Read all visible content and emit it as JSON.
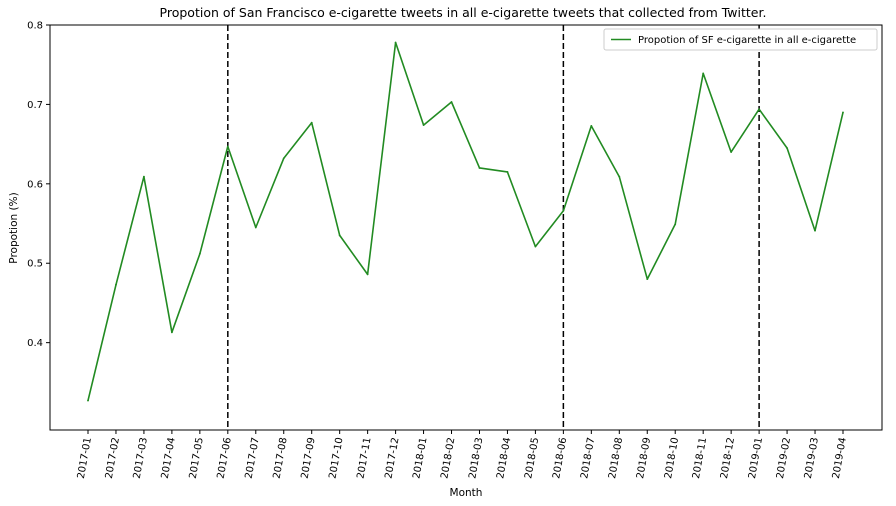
{
  "chart_data": {
    "type": "line",
    "title": "Propotion of San Francisco e-cigarette tweets in all e-cigarette tweets that collected from Twitter.",
    "xlabel": "Month",
    "ylabel": "Propotion (%)",
    "categories": [
      "2017-01",
      "2017-02",
      "2017-03",
      "2017-04",
      "2017-05",
      "2017-06",
      "2017-07",
      "2017-08",
      "2017-09",
      "2017-10",
      "2017-11",
      "2017-12",
      "2018-01",
      "2018-02",
      "2018-03",
      "2018-04",
      "2018-05",
      "2018-06",
      "2018-07",
      "2018-08",
      "2018-09",
      "2018-10",
      "2018-11",
      "2018-12",
      "2019-01",
      "2019-02",
      "2019-03",
      "2019-04"
    ],
    "series": [
      {
        "name": "Propotion of SF e-cigarette in all e-cigarette",
        "color": "#228b22",
        "values": [
          0.327,
          0.473,
          0.609,
          0.413,
          0.512,
          0.647,
          0.545,
          0.632,
          0.677,
          0.535,
          0.486,
          0.778,
          0.674,
          0.703,
          0.62,
          0.615,
          0.521,
          0.566,
          0.673,
          0.609,
          0.48,
          0.549,
          0.739,
          0.64,
          0.694,
          0.645,
          0.541,
          0.69
        ]
      }
    ],
    "ylim": [
      0.29,
      0.8
    ],
    "yticks": [
      0.4,
      0.5,
      0.6,
      0.7,
      0.8
    ],
    "vlines": [
      "2017-06",
      "2018-06",
      "2019-01"
    ],
    "legend_position": "top-right",
    "grid": false
  }
}
